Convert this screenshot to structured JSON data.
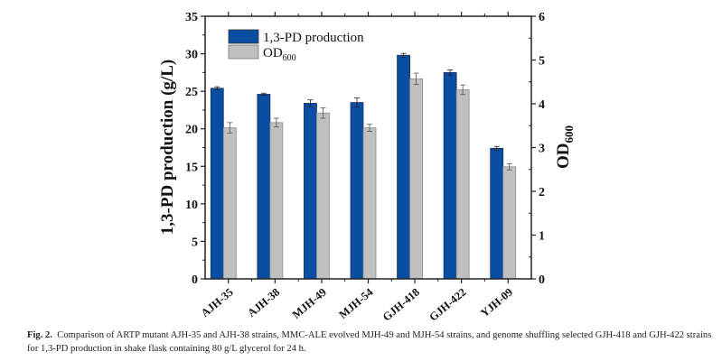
{
  "chart_data": {
    "type": "bar",
    "title": "",
    "categories": [
      "AJH-35",
      "AJH-38",
      "MJH-49",
      "MJH-54",
      "GJH-418",
      "GJH-422",
      "YJH-09"
    ],
    "series": [
      {
        "name": "1,3-PD production",
        "axis": "left",
        "color": "#0a4ea3",
        "values": [
          25.4,
          24.6,
          23.4,
          23.5,
          29.8,
          27.5,
          17.4
        ],
        "errors": [
          0.2,
          0.15,
          0.45,
          0.6,
          0.25,
          0.35,
          0.25
        ]
      },
      {
        "name": "OD",
        "name_subscript": "600",
        "axis": "right",
        "color": "#c0c0c0",
        "values": [
          3.45,
          3.57,
          3.79,
          3.45,
          4.57,
          4.32,
          2.56
        ],
        "errors": [
          0.12,
          0.1,
          0.12,
          0.08,
          0.13,
          0.11,
          0.07
        ]
      }
    ],
    "left_axis": {
      "label": "1,3-PD production (g/L)",
      "range": [
        0,
        35
      ],
      "ticks": [
        0,
        5,
        10,
        15,
        20,
        25,
        30,
        35
      ]
    },
    "right_axis": {
      "label": "OD",
      "label_subscript": "600",
      "range": [
        0,
        6
      ],
      "ticks": [
        0,
        1,
        2,
        3,
        4,
        5,
        6
      ]
    },
    "xlabel": "",
    "grid": false,
    "legend": {
      "position": "top-left"
    }
  },
  "caption": {
    "label": "Fig. 2.",
    "text": "Comparison of ARTP mutant AJH-35 and AJH-38 strains, MMC-ALE evolved MJH-49 and MJH-54 strains, and genome shuffling selected GJH-418 and GJH-422 strains for 1,3-PD production in shake flask containing 80 g/L glycerol for 24 h."
  }
}
